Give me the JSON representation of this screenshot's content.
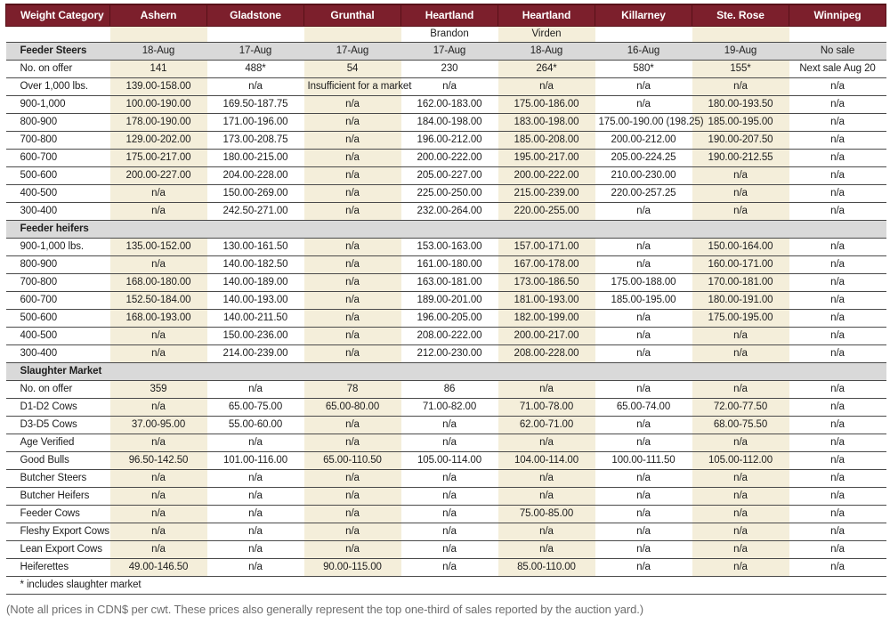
{
  "colors": {
    "header_bg": "#7c1f2c",
    "header_border": "#571118",
    "shaded_col": "#f4eeda",
    "section_bg": "#d9d9d9",
    "line": "#4a4a4a",
    "text": "#1d1d1d",
    "footer_text": "#6e6e6e"
  },
  "table": {
    "columns": [
      {
        "label": "Weight Category",
        "sub": "",
        "shaded": false
      },
      {
        "label": "Ashern",
        "sub": "",
        "shaded": true
      },
      {
        "label": "Gladstone",
        "sub": "",
        "shaded": false
      },
      {
        "label": "Grunthal",
        "sub": "",
        "shaded": true
      },
      {
        "label": "Heartland",
        "sub": "Brandon",
        "shaded": false
      },
      {
        "label": "Heartland",
        "sub": "Virden",
        "shaded": true
      },
      {
        "label": "Killarney",
        "sub": "",
        "shaded": false
      },
      {
        "label": "Ste. Rose",
        "sub": "",
        "shaded": true
      },
      {
        "label": "Winnipeg",
        "sub": "",
        "shaded": false
      }
    ],
    "rows": [
      {
        "type": "section",
        "label": "Feeder Steers",
        "values": [
          "18-Aug",
          "17-Aug",
          "17-Aug",
          "17-Aug",
          "18-Aug",
          "16-Aug",
          "19-Aug",
          "No sale"
        ]
      },
      {
        "type": "data",
        "label": "No. on offer",
        "values": [
          "141",
          "488*",
          "54",
          "230",
          "264*",
          "580*",
          "155*",
          "Next sale Aug 20"
        ]
      },
      {
        "type": "data",
        "label": "Over 1,000 lbs.",
        "values": [
          "139.00-158.00",
          "n/a",
          "Insufficient for a market",
          "n/a",
          "n/a",
          "n/a",
          "n/a",
          "n/a"
        ]
      },
      {
        "type": "data",
        "label": "900-1,000",
        "values": [
          "100.00-190.00",
          "169.50-187.75",
          "n/a",
          "162.00-183.00",
          "175.00-186.00",
          "n/a",
          "180.00-193.50",
          "n/a"
        ]
      },
      {
        "type": "data",
        "label": "800-900",
        "values": [
          "178.00-190.00",
          "171.00-196.00",
          "n/a",
          "184.00-198.00",
          "183.00-198.00",
          "175.00-190.00 (198.25)",
          "185.00-195.00",
          "n/a"
        ]
      },
      {
        "type": "data",
        "label": "700-800",
        "values": [
          "129.00-202.00",
          "173.00-208.75",
          "n/a",
          "196.00-212.00",
          "185.00-208.00",
          "200.00-212.00",
          "190.00-207.50",
          "n/a"
        ]
      },
      {
        "type": "data",
        "label": "600-700",
        "values": [
          "175.00-217.00",
          "180.00-215.00",
          "n/a",
          "200.00-222.00",
          "195.00-217.00",
          "205.00-224.25",
          "190.00-212.55",
          "n/a"
        ]
      },
      {
        "type": "data",
        "label": "500-600",
        "values": [
          "200.00-227.00",
          "204.00-228.00",
          "n/a",
          "205.00-227.00",
          "200.00-222.00",
          "210.00-230.00",
          "n/a",
          "n/a"
        ]
      },
      {
        "type": "data",
        "label": "400-500",
        "values": [
          "n/a",
          "150.00-269.00",
          "n/a",
          "225.00-250.00",
          "215.00-239.00",
          "220.00-257.25",
          "n/a",
          "n/a"
        ]
      },
      {
        "type": "data",
        "label": "300-400",
        "values": [
          "n/a",
          "242.50-271.00",
          "n/a",
          "232.00-264.00",
          "220.00-255.00",
          "n/a",
          "n/a",
          "n/a"
        ]
      },
      {
        "type": "section",
        "label": "Feeder heifers",
        "values": [
          "",
          "",
          "",
          "",
          "",
          "",
          "",
          ""
        ]
      },
      {
        "type": "data",
        "label": "900-1,000 lbs.",
        "values": [
          "135.00-152.00",
          "130.00-161.50",
          "n/a",
          "153.00-163.00",
          "157.00-171.00",
          "n/a",
          "150.00-164.00",
          "n/a"
        ]
      },
      {
        "type": "data",
        "label": "800-900",
        "values": [
          "n/a",
          "140.00-182.50",
          "n/a",
          "161.00-180.00",
          "167.00-178.00",
          "n/a",
          "160.00-171.00",
          "n/a"
        ]
      },
      {
        "type": "data",
        "label": "700-800",
        "values": [
          "168.00-180.00",
          "140.00-189.00",
          "n/a",
          "163.00-181.00",
          "173.00-186.50",
          "175.00-188.00",
          "170.00-181.00",
          "n/a"
        ]
      },
      {
        "type": "data",
        "label": "600-700",
        "values": [
          "152.50-184.00",
          "140.00-193.00",
          "n/a",
          "189.00-201.00",
          "181.00-193.00",
          "185.00-195.00",
          "180.00-191.00",
          "n/a"
        ]
      },
      {
        "type": "data",
        "label": "500-600",
        "values": [
          "168.00-193.00",
          "140.00-211.50",
          "n/a",
          "196.00-205.00",
          "182.00-199.00",
          "n/a",
          "175.00-195.00",
          "n/a"
        ]
      },
      {
        "type": "data",
        "label": "400-500",
        "values": [
          "n/a",
          "150.00-236.00",
          "n/a",
          "208.00-222.00",
          "200.00-217.00",
          "n/a",
          "n/a",
          "n/a"
        ]
      },
      {
        "type": "data",
        "label": "300-400",
        "values": [
          "n/a",
          "214.00-239.00",
          "n/a",
          "212.00-230.00",
          "208.00-228.00",
          "n/a",
          "n/a",
          "n/a"
        ]
      },
      {
        "type": "section",
        "label": "Slaughter Market",
        "values": [
          "",
          "",
          "",
          "",
          "",
          "",
          "",
          ""
        ]
      },
      {
        "type": "data",
        "label": "No. on offer",
        "values": [
          "359",
          "n/a",
          "78",
          "86",
          "n/a",
          "n/a",
          "n/a",
          "n/a"
        ]
      },
      {
        "type": "data",
        "label": "D1-D2 Cows",
        "values": [
          "n/a",
          "65.00-75.00",
          "65.00-80.00",
          "71.00-82.00",
          "71.00-78.00",
          "65.00-74.00",
          "72.00-77.50",
          "n/a"
        ]
      },
      {
        "type": "data",
        "label": "D3-D5 Cows",
        "values": [
          "37.00-95.00",
          "55.00-60.00",
          "n/a",
          "n/a",
          "62.00-71.00",
          "n/a",
          "68.00-75.50",
          "n/a"
        ]
      },
      {
        "type": "data",
        "label": "Age Verified",
        "values": [
          "n/a",
          "n/a",
          "n/a",
          "n/a",
          "n/a",
          "n/a",
          "n/a",
          "n/a"
        ]
      },
      {
        "type": "data",
        "label": "Good Bulls",
        "values": [
          "96.50-142.50",
          "101.00-116.00",
          "65.00-110.50",
          "105.00-114.00",
          "104.00-114.00",
          "100.00-111.50",
          "105.00-112.00",
          "n/a"
        ]
      },
      {
        "type": "data",
        "label": "Butcher Steers",
        "values": [
          "n/a",
          "n/a",
          "n/a",
          "n/a",
          "n/a",
          "n/a",
          "n/a",
          "n/a"
        ]
      },
      {
        "type": "data",
        "label": "Butcher Heifers",
        "values": [
          "n/a",
          "n/a",
          "n/a",
          "n/a",
          "n/a",
          "n/a",
          "n/a",
          "n/a"
        ]
      },
      {
        "type": "data",
        "label": "Feeder Cows",
        "values": [
          "n/a",
          "n/a",
          "n/a",
          "n/a",
          "75.00-85.00",
          "n/a",
          "n/a",
          "n/a"
        ]
      },
      {
        "type": "data",
        "label": "Fleshy Export Cows",
        "values": [
          "n/a",
          "n/a",
          "n/a",
          "n/a",
          "n/a",
          "n/a",
          "n/a",
          "n/a"
        ]
      },
      {
        "type": "data",
        "label": "Lean Export Cows",
        "values": [
          "n/a",
          "n/a",
          "n/a",
          "n/a",
          "n/a",
          "n/a",
          "n/a",
          "n/a"
        ]
      },
      {
        "type": "data",
        "label": "Heiferettes",
        "values": [
          "49.00-146.50",
          "n/a",
          "90.00-115.00",
          "n/a",
          "85.00-110.00",
          "n/a",
          "n/a",
          "n/a"
        ]
      },
      {
        "type": "note",
        "label": "* includes slaughter market"
      }
    ]
  },
  "footer": {
    "note": "(Note all prices in CDN$ per cwt. These prices also generally represent the top one-third of sales reported by the auction yard.)"
  }
}
